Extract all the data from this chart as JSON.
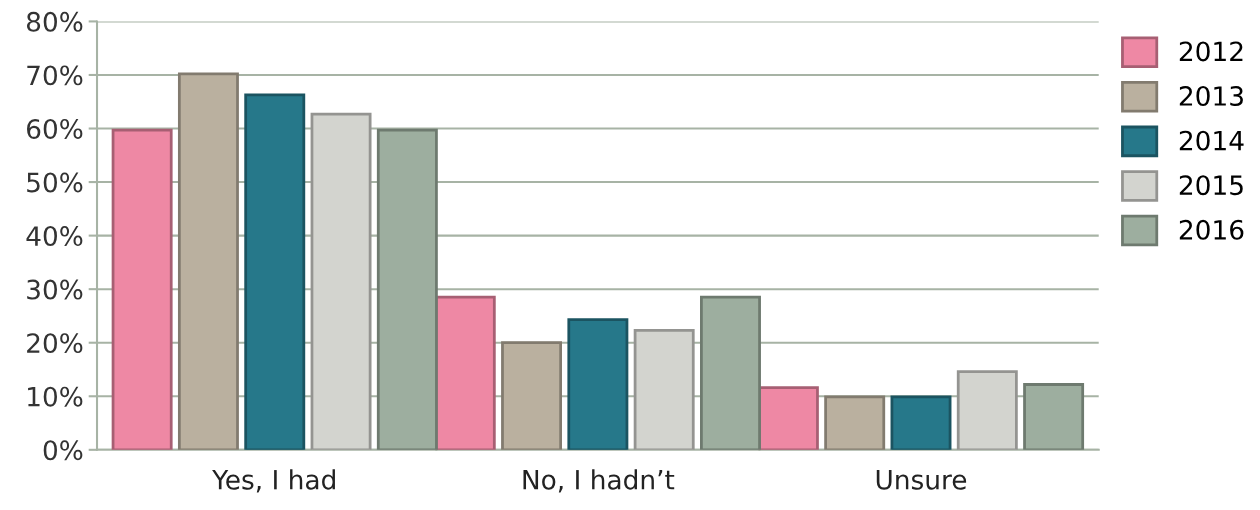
{
  "chart_data": {
    "type": "bar",
    "categories": [
      "Yes, I had",
      "No, I hadn’t",
      "Unsure"
    ],
    "series": [
      {
        "name": "2012",
        "color": "#ee88a4",
        "values": [
          59.7,
          28.5,
          11.6
        ]
      },
      {
        "name": "2013",
        "color": "#bab09f",
        "values": [
          70.2,
          20,
          9.9
        ]
      },
      {
        "name": "2014",
        "color": "#26788a",
        "values": [
          66.3,
          24.3,
          9.9
        ]
      },
      {
        "name": "2015",
        "color": "#d3d4cf",
        "values": [
          62.7,
          22.3,
          14.6
        ]
      },
      {
        "name": "2016",
        "color": "#9dae9f",
        "values": [
          59.7,
          28.5,
          12.2
        ]
      }
    ],
    "ylim": [
      0,
      80
    ],
    "yticks": [
      {
        "value": 0,
        "label": "0%"
      },
      {
        "value": 10,
        "label": "10%"
      },
      {
        "value": 20,
        "label": "20%"
      },
      {
        "value": 30,
        "label": "30%"
      },
      {
        "value": 40,
        "label": "40%"
      },
      {
        "value": 50,
        "label": "50%"
      },
      {
        "value": 60,
        "label": "60%"
      },
      {
        "value": 70,
        "label": "70%"
      },
      {
        "value": 80,
        "label": "80%"
      }
    ],
    "grid": "y",
    "legend": "right"
  }
}
